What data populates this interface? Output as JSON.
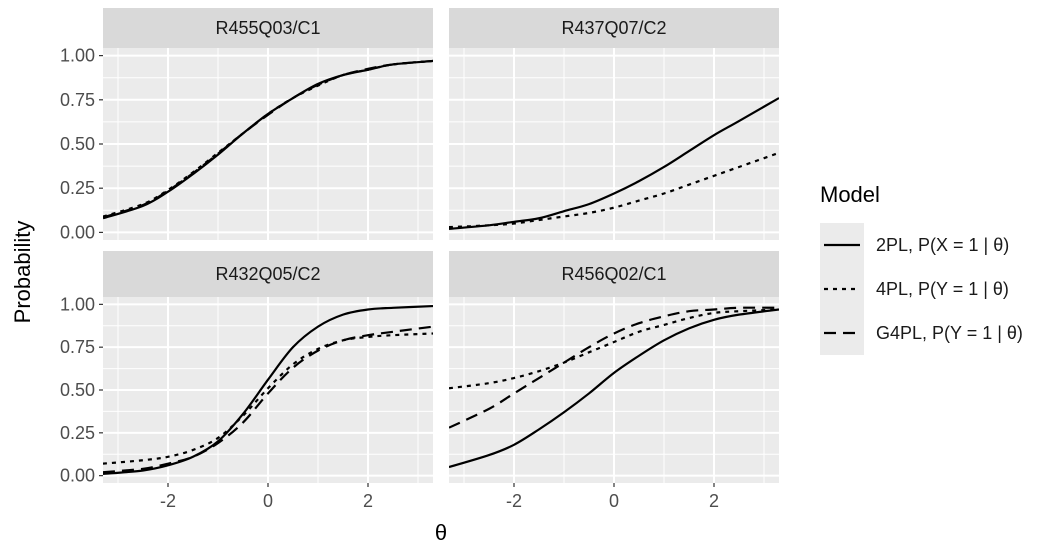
{
  "chart_data": {
    "type": "line",
    "xlabel": "θ",
    "ylabel": "Probability",
    "xlim": [
      -3.3,
      3.3
    ],
    "ylim": [
      0,
      1
    ],
    "x_ticks": [
      -2,
      0,
      2
    ],
    "x_tick_labels": [
      "-2",
      "0",
      "2"
    ],
    "y_ticks": [
      0,
      0.25,
      0.5,
      0.75,
      1
    ],
    "y_tick_labels": [
      "0.00",
      "0.25",
      "0.50",
      "0.75",
      "1.00"
    ],
    "grid": true,
    "legend": {
      "title": "Model",
      "position": "right",
      "entries": [
        {
          "label": "2PL, P(X = 1 | θ)",
          "linetype": "solid"
        },
        {
          "label": "4PL, P(Y = 1 | θ)",
          "linetype": "dotted"
        },
        {
          "label": "G4PL, P(Y = 1 | θ)",
          "linetype": "dashed"
        }
      ]
    },
    "x": [
      -3.3,
      -2.5,
      -2,
      -1.5,
      -1,
      -0.5,
      0,
      0.5,
      1,
      1.5,
      2,
      2.5,
      3.3
    ],
    "panels": [
      {
        "title": "R455Q03/C1",
        "series": [
          {
            "name": "2PL, P(X = 1 | θ)",
            "linetype": "solid",
            "values": [
              0.08,
              0.15,
              0.23,
              0.33,
              0.44,
              0.56,
              0.67,
              0.76,
              0.84,
              0.89,
              0.92,
              0.95,
              0.97
            ]
          },
          {
            "name": "4PL, P(Y = 1 | θ)",
            "linetype": "dotted",
            "values": [
              0.09,
              0.16,
              0.24,
              0.34,
              0.45,
              0.56,
              0.67,
              0.76,
              0.83,
              0.89,
              0.92,
              0.95,
              0.97
            ]
          },
          {
            "name": "G4PL, P(Y = 1 | θ)",
            "linetype": "dashed",
            "values": [
              0.085,
              0.155,
              0.235,
              0.335,
              0.445,
              0.56,
              0.665,
              0.76,
              0.835,
              0.89,
              0.925,
              0.95,
              0.97
            ]
          }
        ]
      },
      {
        "title": "R437Q07/C2",
        "series": [
          {
            "name": "2PL, P(X = 1 | θ)",
            "linetype": "solid",
            "values": [
              0.02,
              0.04,
              0.06,
              0.08,
              0.12,
              0.16,
              0.22,
              0.29,
              0.37,
              0.46,
              0.55,
              0.63,
              0.76
            ]
          },
          {
            "name": "4PL, P(Y = 1 | θ)",
            "linetype": "dotted",
            "values": [
              0.03,
              0.04,
              0.05,
              0.07,
              0.09,
              0.11,
              0.14,
              0.18,
              0.22,
              0.27,
              0.32,
              0.37,
              0.45
            ]
          }
        ]
      },
      {
        "title": "R432Q05/C2",
        "series": [
          {
            "name": "2PL, P(X = 1 | θ)",
            "linetype": "solid",
            "values": [
              0.01,
              0.03,
              0.06,
              0.11,
              0.2,
              0.36,
              0.56,
              0.75,
              0.87,
              0.94,
              0.97,
              0.98,
              0.99
            ]
          },
          {
            "name": "4PL, P(Y = 1 | θ)",
            "linetype": "dotted",
            "values": [
              0.07,
              0.09,
              0.11,
              0.15,
              0.22,
              0.35,
              0.51,
              0.65,
              0.74,
              0.79,
              0.81,
              0.82,
              0.83
            ]
          },
          {
            "name": "G4PL, P(Y = 1 | θ)",
            "linetype": "dashed",
            "values": [
              0.02,
              0.04,
              0.07,
              0.11,
              0.19,
              0.31,
              0.48,
              0.63,
              0.73,
              0.79,
              0.82,
              0.84,
              0.87
            ]
          }
        ]
      },
      {
        "title": "R456Q02/C1",
        "series": [
          {
            "name": "2PL, P(X = 1 | θ)",
            "linetype": "solid",
            "values": [
              0.05,
              0.12,
              0.18,
              0.27,
              0.37,
              0.48,
              0.6,
              0.7,
              0.79,
              0.86,
              0.91,
              0.94,
              0.97
            ]
          },
          {
            "name": "4PL, P(Y = 1 | θ)",
            "linetype": "dotted",
            "values": [
              0.51,
              0.54,
              0.57,
              0.61,
              0.66,
              0.72,
              0.78,
              0.84,
              0.88,
              0.92,
              0.95,
              0.96,
              0.97
            ]
          },
          {
            "name": "G4PL, P(Y = 1 | θ)",
            "linetype": "dashed",
            "values": [
              0.28,
              0.39,
              0.48,
              0.57,
              0.66,
              0.75,
              0.83,
              0.89,
              0.93,
              0.96,
              0.97,
              0.98,
              0.98
            ]
          }
        ]
      }
    ]
  }
}
